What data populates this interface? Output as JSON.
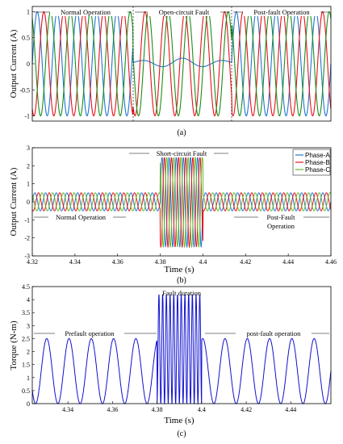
{
  "chart_data": [
    {
      "type": "line",
      "panel_label": "(a)",
      "ylabel": "Output Current (A)",
      "yticks": [
        "1",
        "0.5",
        "0",
        "-0.5",
        "-1"
      ],
      "ylim": [
        -1.1,
        1.1
      ],
      "colors": [
        "#1f77d0",
        "#e8101a",
        "#1a8f1a"
      ],
      "annotations": [
        "Normal Operation",
        "Open-circuit Fault",
        "Post-fault Operation"
      ]
    },
    {
      "type": "line",
      "panel_label": "(b)",
      "xlabel": "Time (s)",
      "ylabel": "Output Current (A)",
      "xticks": [
        "4.32",
        "4.34",
        "4.36",
        "4.38",
        "4.4",
        "4.42",
        "4.44",
        "4.46"
      ],
      "yticks": [
        "3",
        "2",
        "1",
        "0",
        "-1",
        "-2",
        "-3"
      ],
      "xlim": [
        4.32,
        4.46
      ],
      "ylim": [
        -3,
        3
      ],
      "series": [
        {
          "name": "Phase-A",
          "color": "#1f77d0"
        },
        {
          "name": "Phase-B",
          "color": "#e8101a"
        },
        {
          "name": "Phase-C",
          "color": "#6ab82a"
        }
      ],
      "normal_amplitude": 0.5,
      "fault_amplitude": 2.5,
      "fault_interval": [
        4.38,
        4.4
      ],
      "annotations": [
        "Short-circuit Fault",
        "Normal Operation",
        "Post-Fault",
        "Operation"
      ]
    },
    {
      "type": "line",
      "panel_label": "(c)",
      "xlabel": "Time (s)",
      "ylabel": "Torque (N-m)",
      "xticks": [
        "4.34",
        "4.36",
        "4.38",
        "4.4",
        "4.42",
        "4.44"
      ],
      "yticks": [
        "4.5",
        "4",
        "3.5",
        "3",
        "2.5",
        "2",
        "1.5",
        "1",
        "0.5",
        "0"
      ],
      "xlim": [
        4.324,
        4.458
      ],
      "ylim": [
        0,
        4.5
      ],
      "color": "#1010d0",
      "normal_range": [
        0,
        2.5
      ],
      "fault_range": [
        0,
        4.2
      ],
      "fault_interval": [
        4.38,
        4.4
      ],
      "annotations": [
        "Fault duration",
        "Prefault operation",
        "post-fault operation"
      ]
    }
  ]
}
